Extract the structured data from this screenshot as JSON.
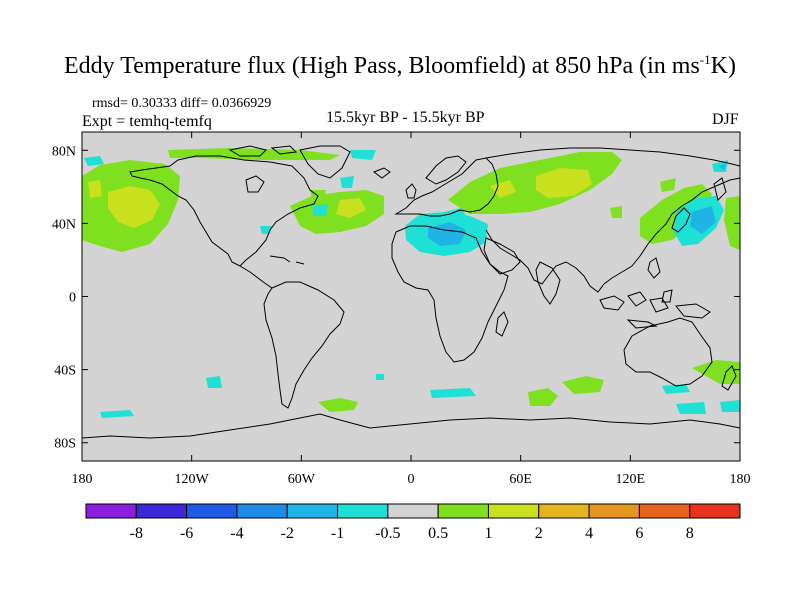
{
  "title": {
    "main": "Eddy Temperature flux (High Pass, Bloomfield) at 850 hPa (in ms",
    "superscript": "-1",
    "unit_end": "K)"
  },
  "stats": "rmsd= 0.30333 diff= 0.0366929",
  "experiment": "Expt = temhq-temfq",
  "subtitle": "15.5kyr BP - 15.5kyr BP",
  "season": "DJF",
  "map": {
    "background_color": "#d3d3d3",
    "lat_ticks": [
      {
        "value": 80,
        "label": "80N"
      },
      {
        "value": 40,
        "label": "40N"
      },
      {
        "value": 0,
        "label": "0"
      },
      {
        "value": -40,
        "label": "40S"
      },
      {
        "value": -80,
        "label": "80S"
      }
    ],
    "lon_ticks": [
      {
        "value": -180,
        "label": "180"
      },
      {
        "value": -120,
        "label": "120W"
      },
      {
        "value": -60,
        "label": "60W"
      },
      {
        "value": 0,
        "label": "0"
      },
      {
        "value": 60,
        "label": "60E"
      },
      {
        "value": 120,
        "label": "120E"
      },
      {
        "value": 180,
        "label": "180"
      }
    ]
  },
  "colorbar": {
    "colors": [
      "#8c1ee0",
      "#3c28d8",
      "#1e5ae6",
      "#1e8ce6",
      "#1eb4e6",
      "#1ee0d4",
      "#d3d3d3",
      "#7ee01e",
      "#c8e01e",
      "#e6b41e",
      "#e6961e",
      "#e6641e",
      "#e6321e"
    ],
    "labels": [
      "-8",
      "-6",
      "-4",
      "-2",
      "-1",
      "-0.5",
      "0.5",
      "1",
      "2",
      "4",
      "6",
      "8"
    ]
  }
}
